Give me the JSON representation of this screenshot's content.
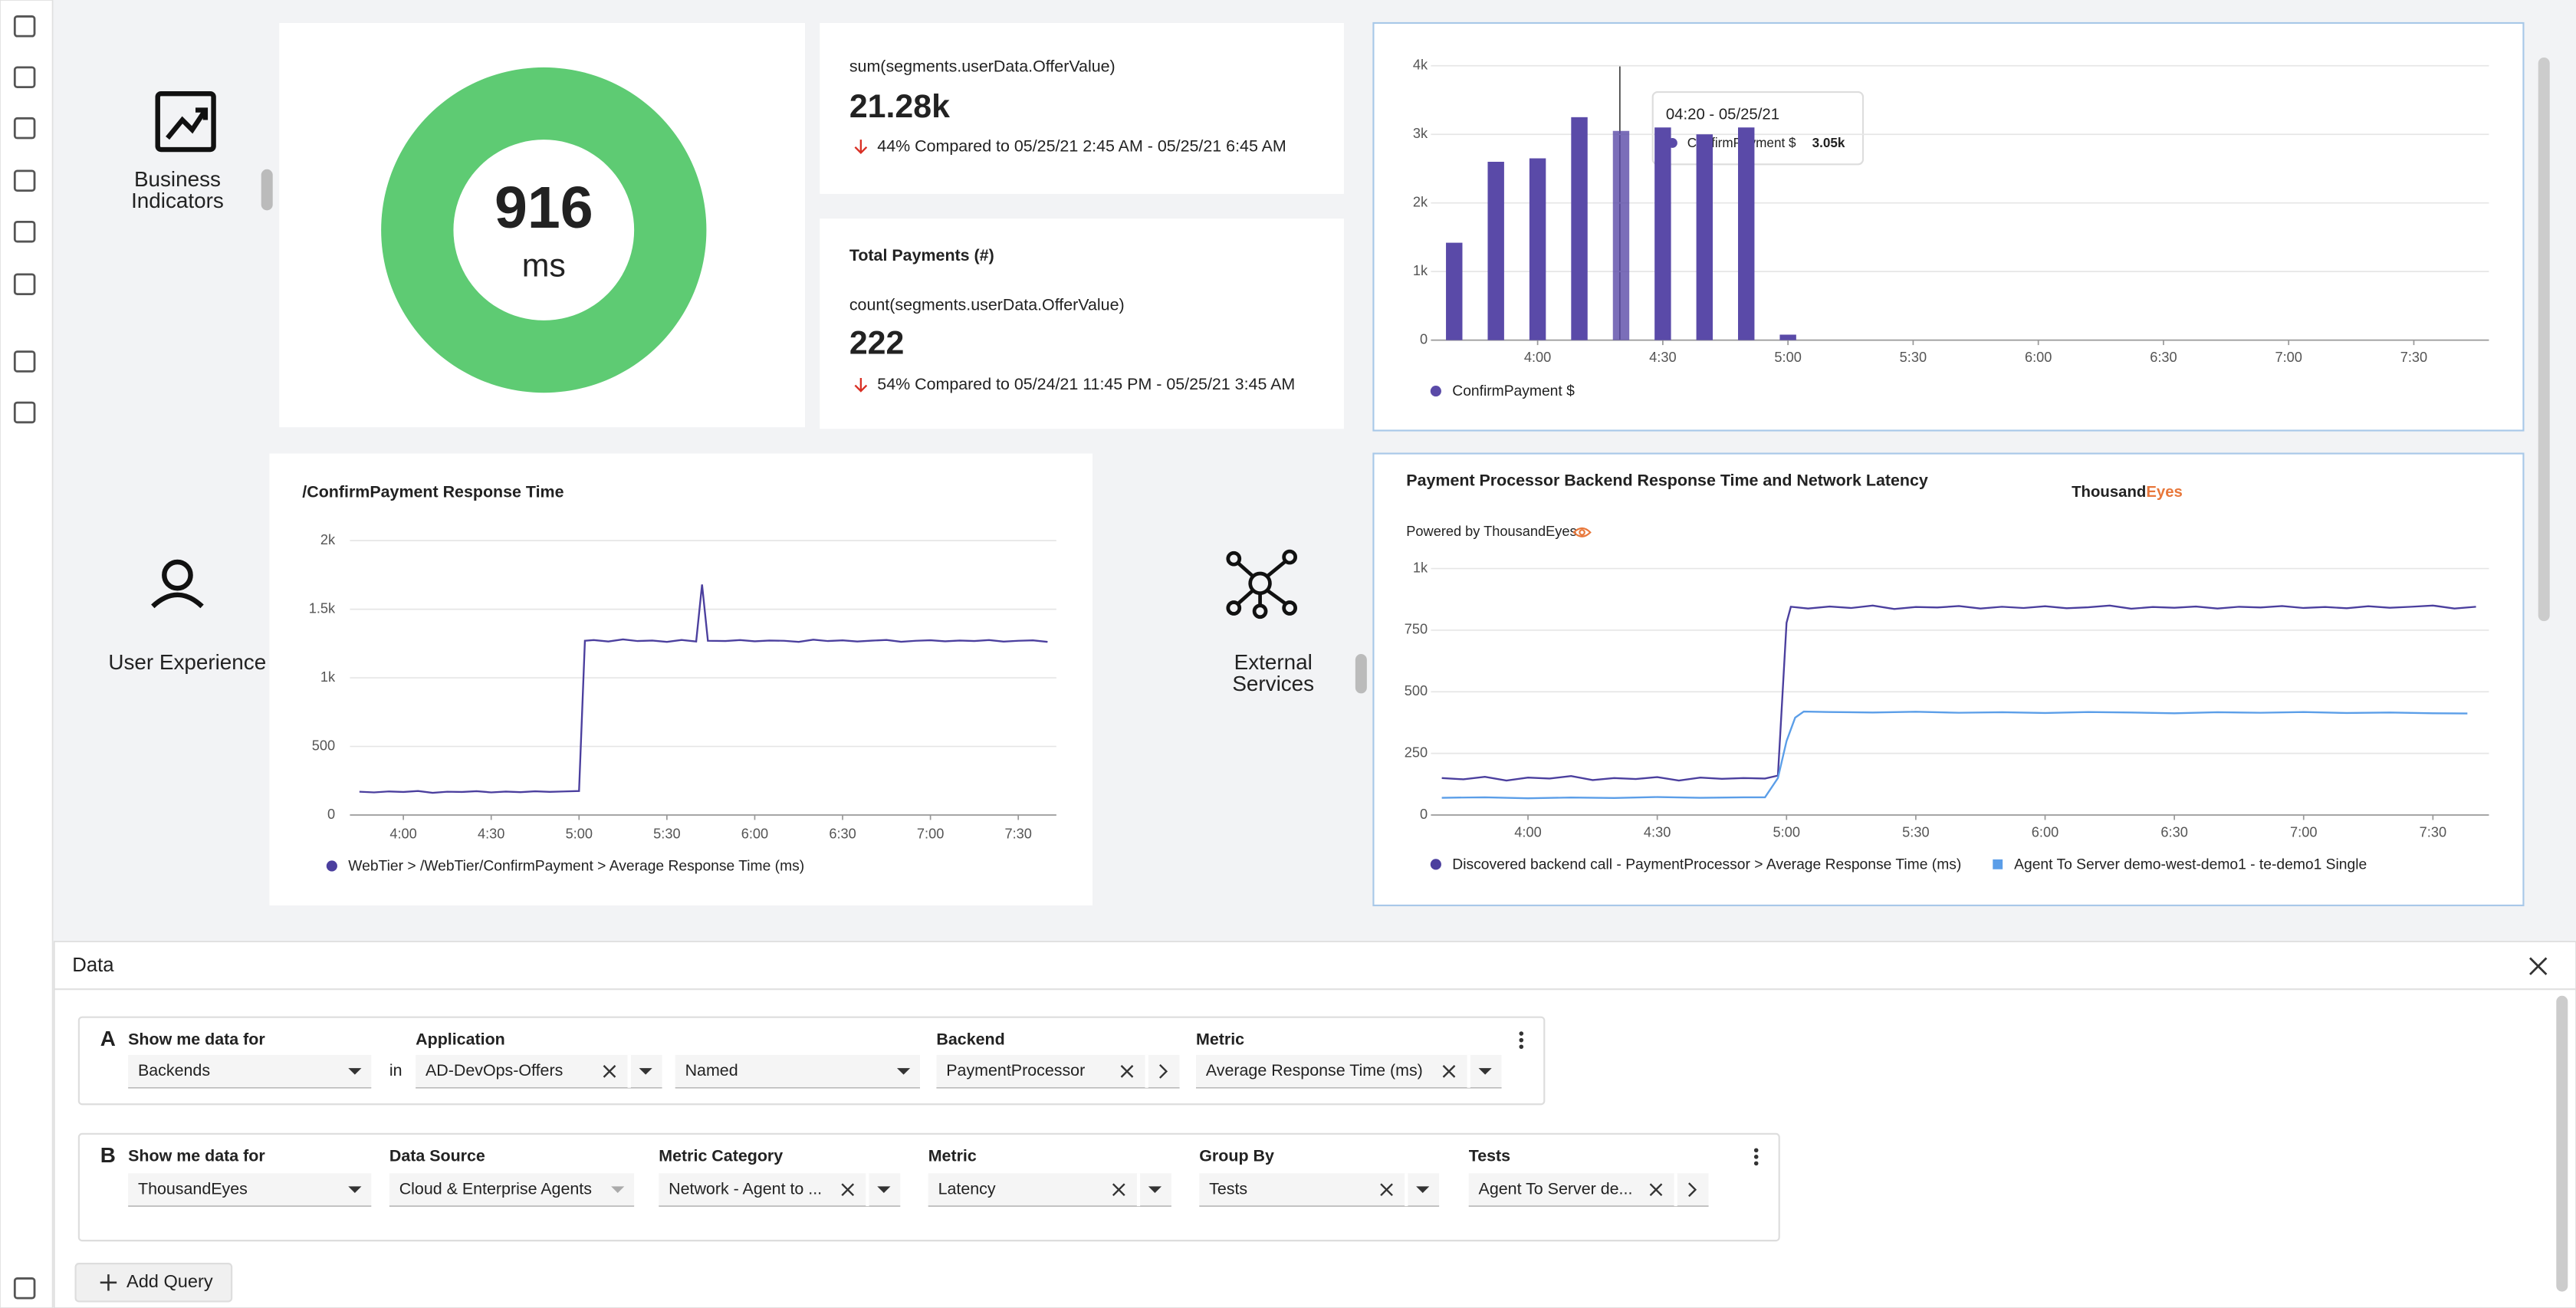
{
  "tiles": [
    {
      "lines": [
        "Business",
        "Indicators"
      ]
    },
    {
      "lines": [
        "User Experience"
      ]
    },
    {
      "lines": [
        "External",
        "Services"
      ]
    }
  ],
  "donut": {
    "value": "916",
    "unit": "ms",
    "color": "#5ecb73"
  },
  "metric_cards": [
    {
      "expression": "sum(segments.userData.OfferValue)",
      "value": "21.28k",
      "comparison": "44% Compared to 05/25/21 2:45 AM - 05/25/21 6:45 AM"
    },
    {
      "title": "Total Payments (#)",
      "expression": "count(segments.userData.OfferValue)",
      "value": "222",
      "comparison": "54% Compared to 05/24/21 11:45 PM - 05/25/21 3:45 AM"
    }
  ],
  "bar_chart": {
    "type": "bar",
    "series": [
      {
        "name": "ConfirmPayment $",
        "color": "#5a4aa8",
        "x": [
          "3:40",
          "3:50",
          "4:00",
          "4:10",
          "4:20",
          "4:30",
          "4:40",
          "4:50",
          "5:00"
        ],
        "values": [
          1420,
          2600,
          2650,
          3250,
          3050,
          3100,
          3000,
          3100,
          80
        ]
      }
    ],
    "xlim": [
      "3:36",
      "7:48"
    ],
    "xticks": [
      "4:00",
      "4:30",
      "5:00",
      "5:30",
      "6:00",
      "6:30",
      "7:00",
      "7:30"
    ],
    "ylim": [
      0,
      4000
    ],
    "yticks": [
      0,
      {
        "value": 1000,
        "label": "1k"
      },
      {
        "value": 2000,
        "label": "2k"
      },
      {
        "value": 3000,
        "label": "3k"
      },
      {
        "value": 4000,
        "label": "4k"
      }
    ],
    "grid": true,
    "tooltip": {
      "title": "04:20 - 05/25/21",
      "value_label": "3.05k"
    }
  },
  "response_chart": {
    "type": "line",
    "title": "/ConfirmPayment Response Time",
    "series": [
      {
        "name": "WebTier > /WebTier/ConfirmPayment > Average Response Time (ms)",
        "color": "#4b3f9e",
        "x": [
          "3:45",
          "3:50",
          "3:55",
          "4:00",
          "4:05",
          "4:10",
          "4:15",
          "4:20",
          "4:25",
          "4:30",
          "4:35",
          "4:40",
          "4:45",
          "4:50",
          "4:55",
          "5:00",
          "5:02",
          "5:05",
          "5:10",
          "5:15",
          "5:20",
          "5:25",
          "5:30",
          "5:35",
          "5:40",
          "5:42",
          "5:44",
          "5:50",
          "5:55",
          "6:00",
          "6:05",
          "6:10",
          "6:15",
          "6:20",
          "6:25",
          "6:30",
          "6:35",
          "6:40",
          "6:45",
          "6:50",
          "6:55",
          "7:00",
          "7:05",
          "7:10",
          "7:15",
          "7:20",
          "7:25",
          "7:30",
          "7:35",
          "7:40"
        ],
        "values": [
          170,
          165,
          172,
          168,
          175,
          162,
          170,
          168,
          174,
          165,
          171,
          167,
          173,
          169,
          172,
          175,
          1270,
          1275,
          1265,
          1280,
          1268,
          1272,
          1262,
          1276,
          1265,
          1680,
          1270,
          1268,
          1275,
          1266,
          1272,
          1270,
          1262,
          1278,
          1268,
          1273,
          1265,
          1271,
          1276,
          1263,
          1270,
          1274,
          1266,
          1272,
          1268,
          1275,
          1264,
          1270,
          1273,
          1262
        ]
      }
    ],
    "xlim": [
      "3:44",
      "7:43"
    ],
    "xticks": [
      "4:00",
      "4:30",
      "5:00",
      "5:30",
      "6:00",
      "6:30",
      "7:00",
      "7:30"
    ],
    "ylim": [
      0,
      2000
    ],
    "yticks": [
      0,
      500,
      {
        "value": 1000,
        "label": "1k"
      },
      {
        "value": 1500,
        "label": "1.5k"
      },
      {
        "value": 2000,
        "label": "2k"
      }
    ],
    "grid": true
  },
  "backend_chart": {
    "type": "line",
    "title": "Payment Processor Backend Response Time and Network Latency",
    "subtitle": "Powered by ThousandEyes",
    "logo": [
      "Thousand",
      "Eyes"
    ],
    "series": [
      {
        "name": "Discovered backend call - PaymentProcessor > Average Response Time (ms)",
        "color": "#4b3f9e",
        "x": [
          "3:40",
          "3:45",
          "3:50",
          "3:55",
          "4:00",
          "4:05",
          "4:10",
          "4:15",
          "4:20",
          "4:25",
          "4:30",
          "4:35",
          "4:40",
          "4:45",
          "4:50",
          "4:55",
          "4:58",
          "5:00",
          "5:01",
          "5:05",
          "5:10",
          "5:15",
          "5:20",
          "5:25",
          "5:30",
          "5:35",
          "5:40",
          "5:45",
          "5:50",
          "5:55",
          "6:00",
          "6:05",
          "6:10",
          "6:15",
          "6:20",
          "6:25",
          "6:30",
          "6:35",
          "6:40",
          "6:45",
          "6:50",
          "6:55",
          "7:00",
          "7:05",
          "7:10",
          "7:15",
          "7:20",
          "7:25",
          "7:30",
          "7:35",
          "7:40"
        ],
        "values": [
          150,
          145,
          155,
          140,
          152,
          148,
          158,
          142,
          150,
          146,
          154,
          140,
          152,
          147,
          150,
          148,
          160,
          780,
          845,
          838,
          846,
          840,
          850,
          836,
          844,
          842,
          848,
          838,
          845,
          840,
          847,
          839,
          843,
          850,
          837,
          844,
          841,
          846,
          838,
          845,
          842,
          848,
          840,
          844,
          839,
          847,
          841,
          845,
          850,
          838,
          845
        ]
      },
      {
        "name": "Agent To Server demo-west-demo1 - te-demo1 Single",
        "color": "#5b9ee8",
        "x": [
          "3:40",
          "3:50",
          "4:00",
          "4:10",
          "4:20",
          "4:30",
          "4:40",
          "4:50",
          "4:55",
          "4:58",
          "5:00",
          "5:02",
          "5:04",
          "5:10",
          "5:20",
          "5:30",
          "5:40",
          "5:50",
          "6:00",
          "6:10",
          "6:20",
          "6:30",
          "6:40",
          "6:50",
          "7:00",
          "7:10",
          "7:20",
          "7:30",
          "7:38"
        ],
        "values": [
          70,
          72,
          68,
          71,
          69,
          73,
          70,
          72,
          72,
          150,
          300,
          395,
          420,
          418,
          416,
          419,
          415,
          417,
          414,
          418,
          416,
          413,
          417,
          415,
          418,
          414,
          416,
          413,
          412
        ]
      }
    ],
    "xlim": [
      "3:39",
      "7:43"
    ],
    "xticks": [
      "4:00",
      "4:30",
      "5:00",
      "5:30",
      "6:00",
      "6:30",
      "7:00",
      "7:30"
    ],
    "ylim": [
      0,
      1000
    ],
    "yticks": [
      0,
      250,
      500,
      750,
      {
        "value": 1000,
        "label": "1k"
      }
    ],
    "grid": true
  },
  "data_panel": {
    "title": "Data",
    "queries": [
      {
        "letter": "A",
        "connector": "in",
        "fields": [
          {
            "label": "Show me data for",
            "value": "Backends"
          },
          {
            "label": "Application",
            "value": "AD-DevOps-Offers"
          },
          {
            "value": "Named"
          },
          {
            "label": "Backend",
            "value": "PaymentProcessor"
          },
          {
            "label": "Metric",
            "value": "Average Response Time (ms)"
          }
        ]
      },
      {
        "letter": "B",
        "fields": [
          {
            "label": "Show me data for",
            "value": "ThousandEyes"
          },
          {
            "label": "Data Source",
            "value": "Cloud & Enterprise Agents"
          },
          {
            "label": "Metric Category",
            "value": "Network - Agent to ..."
          },
          {
            "label": "Metric",
            "value": "Latency"
          },
          {
            "label": "Group By",
            "value": "Tests"
          },
          {
            "label": "Tests",
            "value": "Agent To Server de..."
          }
        ]
      }
    ],
    "add_button": "Add Query"
  }
}
